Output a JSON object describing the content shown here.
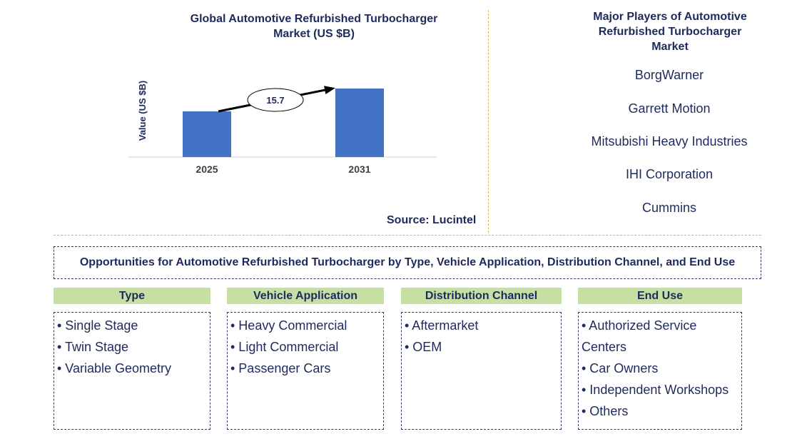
{
  "chart_data": {
    "type": "bar",
    "title": "Global Automotive Refurbished Turbocharger Market (US $B)",
    "ylabel": "Value (US $B)",
    "categories": [
      "2025",
      "2031"
    ],
    "values": [
      20,
      30
    ],
    "annotation": "15.7",
    "source": "Source: Lucintel",
    "colors": {
      "bar": "#4472c4",
      "arrow": "#000000"
    }
  },
  "players": {
    "title": "Major Players of Automotive Refurbished Turbocharger Market",
    "items": [
      "BorgWarner",
      "Garrett Motion",
      "Mitsubishi Heavy Industries",
      "IHI Corporation",
      "Cummins"
    ]
  },
  "opportunities": {
    "title": "Opportunities for Automotive Refurbished Turbocharger by Type, Vehicle Application, Distribution Channel, and End Use",
    "categories": [
      {
        "header": "Type",
        "items": [
          "• Single Stage",
          "• Twin Stage",
          "• Variable Geometry"
        ]
      },
      {
        "header": "Vehicle Application",
        "items": [
          "• Heavy Commercial",
          "• Light Commercial",
          "• Passenger Cars"
        ]
      },
      {
        "header": "Distribution Channel",
        "items": [
          "• Aftermarket",
          "• OEM"
        ]
      },
      {
        "header": "End Use",
        "items": [
          "• Authorized Service Centers",
          "• Car Owners",
          "• Independent Workshops",
          "• Others"
        ]
      }
    ],
    "colors": {
      "header_bg": "#c6e0a4",
      "text": "#1f2a5c"
    }
  }
}
